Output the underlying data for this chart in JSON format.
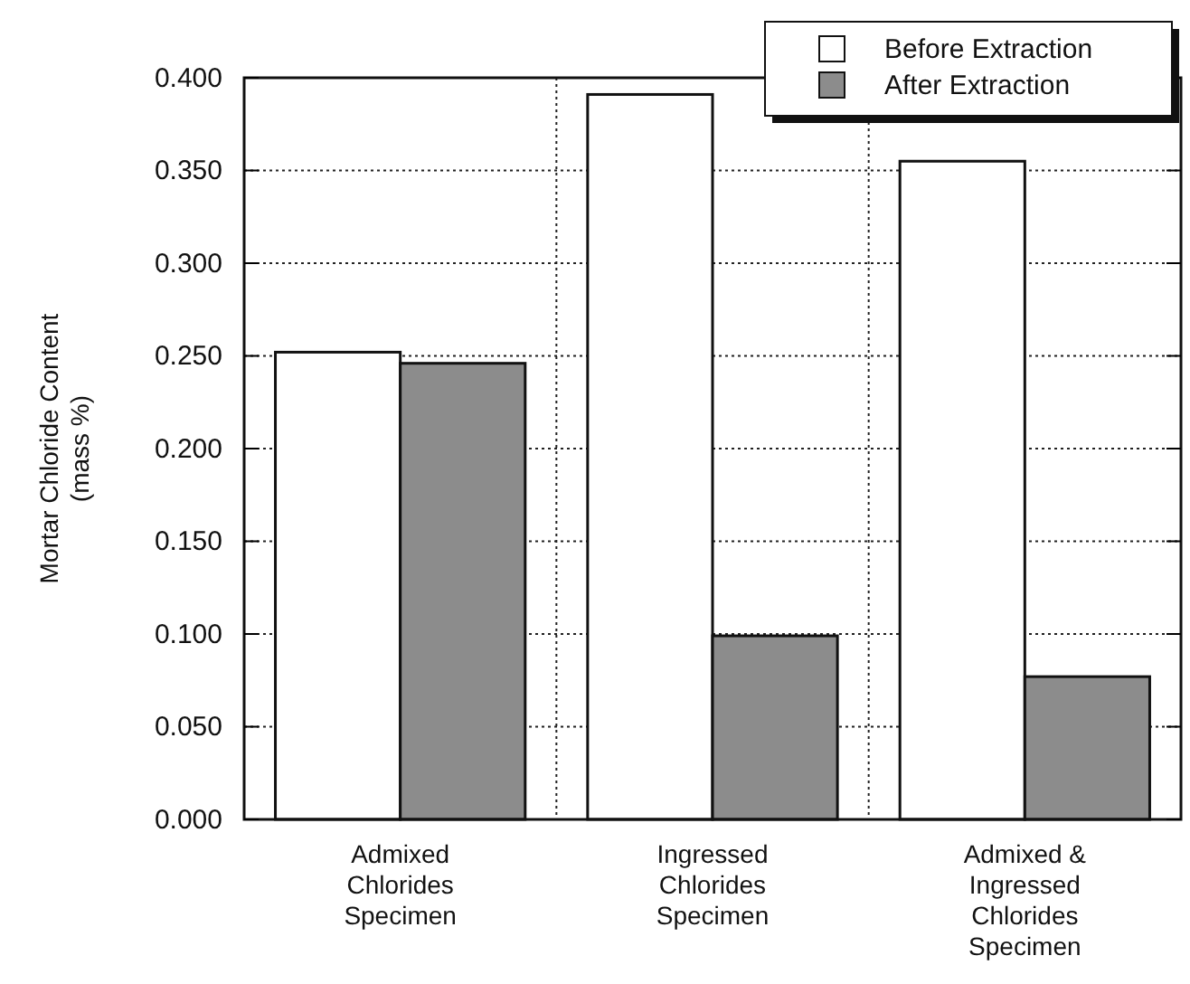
{
  "chart_data": {
    "type": "bar",
    "ylabel": "Mortar Chloride Content\n(mass %)",
    "categories": [
      "Admixed\nChlorides\nSpecimen",
      "Ingressed\nChlorides\nSpecimen",
      "Admixed &\nIngressed\nChlorides\nSpecimen"
    ],
    "series": [
      {
        "name": "Before Extraction",
        "color": "#ffffff",
        "values": [
          0.252,
          0.391,
          0.355
        ]
      },
      {
        "name": "After Extraction",
        "color": "#8c8c8c",
        "values": [
          0.246,
          0.099,
          0.077
        ]
      }
    ],
    "ylim": [
      0,
      0.4
    ],
    "yticks": [
      {
        "value": 0,
        "label": "0.000"
      },
      {
        "value": 0.05,
        "label": "0.050"
      },
      {
        "value": 0.1,
        "label": "0.100"
      },
      {
        "value": 0.15,
        "label": "0.150"
      },
      {
        "value": 0.2,
        "label": "0.200"
      },
      {
        "value": 0.25,
        "label": "0.250"
      },
      {
        "value": 0.3,
        "label": "0.300"
      },
      {
        "value": 0.35,
        "label": "0.350"
      },
      {
        "value": 0.4,
        "label": "0.400"
      }
    ],
    "grid": true,
    "legend": "top right"
  }
}
